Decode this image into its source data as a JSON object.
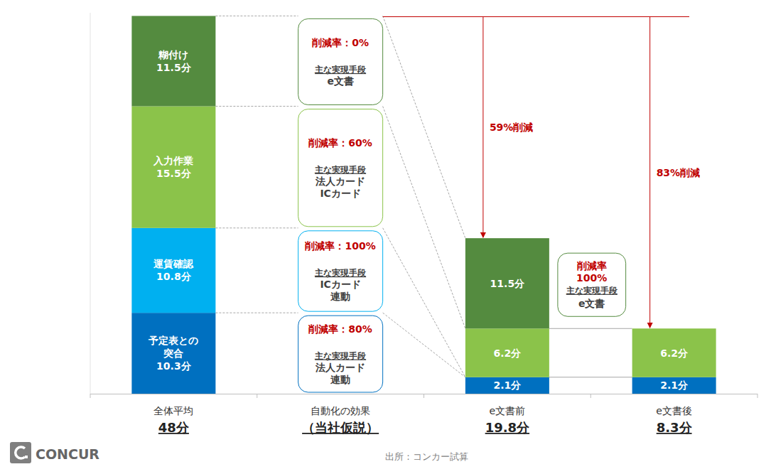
{
  "chart_data": {
    "type": "bar",
    "stacked": true,
    "data_labels": true,
    "tick_labels": "x",
    "grid": false,
    "categories": [
      "全体平均",
      "自動化の効果",
      "e文書前",
      "e文書後"
    ],
    "category_sublabels": [
      "48分",
      "（当社仮説）",
      "19.8分",
      "8.3分"
    ],
    "totals": [
      48,
      null,
      19.8,
      8.3
    ],
    "ylim": [
      0,
      48.5
    ],
    "yticks": [],
    "series": [
      {
        "name": "予定表との突合",
        "color": "#0070c0",
        "values": [
          10.3,
          null,
          2.1,
          2.1
        ],
        "value_labels": [
          "10.3分",
          null,
          "2.1分",
          "2.1分"
        ]
      },
      {
        "name": "運賃確認",
        "color": "#00b0f0",
        "values": [
          10.8,
          null,
          null,
          null
        ],
        "value_labels": [
          "10.8分",
          null,
          null,
          null
        ]
      },
      {
        "name": "入力作業",
        "color": "#8bc34a",
        "values": [
          15.5,
          null,
          6.2,
          6.2
        ],
        "value_labels": [
          "15.5分",
          null,
          "6.2分",
          "6.2分"
        ]
      },
      {
        "name": "糊付け",
        "color": "#548b3f",
        "values": [
          11.5,
          null,
          11.5,
          null
        ],
        "value_labels": [
          "11.5分",
          null,
          "11.5分",
          null
        ]
      }
    ],
    "annotations": {
      "callouts": [
        {
          "rate_label": "削減率：80%",
          "means_title": "主な実現手段",
          "means": [
            "法人カード",
            "連動"
          ]
        },
        {
          "rate_label": "削減率：100%",
          "means_title": "主な実現手段",
          "means": [
            "ICカード",
            "連動"
          ]
        },
        {
          "rate_label": "削減率：60%",
          "means_title": "主な実現手段",
          "means": [
            "法人カード",
            "ICカード"
          ]
        },
        {
          "rate_label": "削減率：0%",
          "means_title": "主な実現手段",
          "means": [
            "e文書"
          ]
        }
      ],
      "bridge_callout": {
        "rate_lines": [
          "削減率",
          "100%"
        ],
        "means_title": "主な実現手段",
        "means": [
          "e文書"
        ]
      },
      "arrows": [
        "59%削減",
        "83%削減"
      ]
    },
    "source": "出所：コンカー試算",
    "logo": "CONCUR"
  }
}
